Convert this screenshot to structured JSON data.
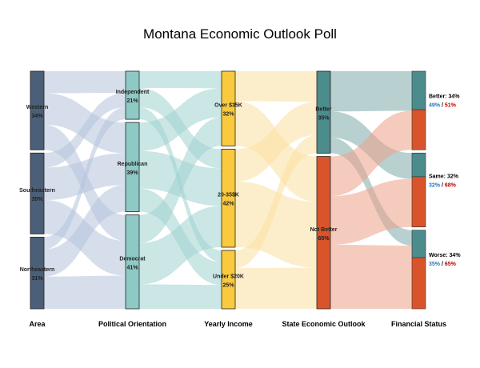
{
  "chart_data": {
    "type": "sankey",
    "title": "Montana Economic Outlook Poll",
    "columns": [
      {
        "name": "Area",
        "color": "#4b5f78",
        "nodes": [
          {
            "label": "Western",
            "pct": "34%"
          },
          {
            "label": "Southeastern",
            "pct": "35%"
          },
          {
            "label": "Northeastern",
            "pct": "31%"
          }
        ]
      },
      {
        "name": "Political Orientation",
        "color": "#8fc9c6",
        "nodes": [
          {
            "label": "Independent",
            "pct": "21%"
          },
          {
            "label": "Republican",
            "pct": "39%"
          },
          {
            "label": "Democrat",
            "pct": "41%"
          }
        ]
      },
      {
        "name": "Yearly Income",
        "color": "#f9c93e",
        "nodes": [
          {
            "label": "Over $35K",
            "pct": "32%"
          },
          {
            "label": "20-35$K",
            "pct": "42%"
          },
          {
            "label": "Under $20K",
            "pct": "25%"
          }
        ]
      },
      {
        "name": "State Economic Outlook",
        "nodes": [
          {
            "label": "Better",
            "pct": "35%",
            "color": "#4d8c8c"
          },
          {
            "label": "Not Better",
            "pct": "65%",
            "color": "#d9542b"
          }
        ]
      },
      {
        "name": "Financial Status",
        "nodes": [
          {
            "label": "Better:",
            "pct": "34%",
            "split": [
              49,
              51
            ],
            "split_labels": [
              "49%",
              "51%"
            ]
          },
          {
            "label": "Same:",
            "pct": "32%",
            "split": [
              32,
              68
            ],
            "split_labels": [
              "32%",
              "68%"
            ]
          },
          {
            "label": "Worse:",
            "pct": "34%",
            "split": [
              35,
              65
            ],
            "split_labels": [
              "35%",
              "65%"
            ]
          }
        ]
      }
    ],
    "split_colors": {
      "better": "#4d8c8c",
      "not_better": "#d9542b",
      "better_text": "#2e74b5",
      "not_better_text": "#c00000"
    },
    "flow_colors": {
      "area_to_political": "#b5c3db",
      "political_to_income": "#9fd1cf",
      "income_to_outlook": "#fbe0a0",
      "outlook_better_to_status": "#7eaaaa",
      "outlook_notbetter_to_status": "#eca088"
    },
    "flows": {
      "area_to_political": [
        [
          0.28,
          0.4,
          0.32
        ],
        [
          0.18,
          0.4,
          0.42
        ],
        [
          0.17,
          0.38,
          0.45
        ]
      ],
      "political_to_income": [
        [
          0.35,
          0.4,
          0.25
        ],
        [
          0.32,
          0.42,
          0.26
        ],
        [
          0.3,
          0.44,
          0.26
        ]
      ],
      "income_to_outlook": [
        [
          0.4,
          0.6
        ],
        [
          0.33,
          0.67
        ],
        [
          0.3,
          0.7
        ]
      ],
      "outlook_to_status": [
        [
          0.49,
          0.32,
          0.19
        ],
        [
          0.26,
          0.32,
          0.42
        ]
      ]
    }
  }
}
